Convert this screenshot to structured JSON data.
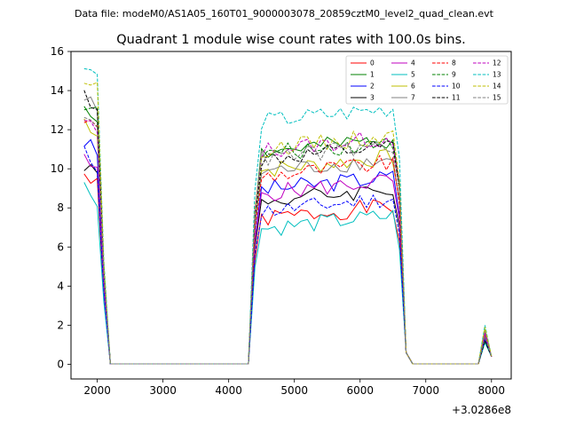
{
  "figure": {
    "suptitle": "Data file: modeM0/AS1A05_160T01_9000003078_20859cztM0_level2_quad_clean.evt"
  },
  "chart_data": {
    "type": "line",
    "title": "Quadrant 1 module wise count rates with 100.0s bins.",
    "xlabel": "",
    "ylabel": "",
    "x_offset_label": "+3.0286e8",
    "xlim": [
      1600,
      8300
    ],
    "ylim": [
      -0.75,
      16
    ],
    "xticks": [
      2000,
      3000,
      4000,
      5000,
      6000,
      7000,
      8000
    ],
    "xtick_labels": [
      "2000",
      "3000",
      "4000",
      "5000",
      "6000",
      "7000",
      "8000"
    ],
    "yticks": [
      0,
      2,
      4,
      6,
      8,
      10,
      12,
      14,
      16
    ],
    "ytick_labels": [
      "0",
      "2",
      "4",
      "6",
      "8",
      "10",
      "12",
      "14",
      "16"
    ],
    "grid": false,
    "legend_position": "top-right",
    "x_segments": [
      [
        1800,
        1900,
        2000,
        2100,
        2200
      ],
      [
        2300,
        2400,
        2500,
        2600,
        2700,
        2800,
        2900,
        3000,
        3100,
        3200,
        3300,
        3400,
        3500,
        3600,
        3700,
        3800,
        3900,
        4000,
        4100,
        4200,
        4300
      ],
      [
        4400,
        4500,
        4600,
        4700,
        4800,
        4900,
        5000,
        5100,
        5200,
        5300,
        5400,
        5500,
        5600,
        5700,
        5800,
        5900,
        6000,
        6100,
        6200,
        6300,
        6400,
        6500,
        6600,
        6700
      ],
      [
        6800,
        6900,
        7000,
        7100,
        7200,
        7300,
        7400,
        7500,
        7600,
        7700,
        7800,
        7900,
        8000
      ]
    ],
    "series": [
      {
        "name": "0",
        "color": "#ff0000",
        "dash": "solid",
        "level1": 9.7,
        "level2": 7.4,
        "peak": 1.5,
        "seed": 1
      },
      {
        "name": "1",
        "color": "#008000",
        "dash": "solid",
        "level1": 13.3,
        "level2": 10.8,
        "peak": 1.3,
        "seed": 2
      },
      {
        "name": "2",
        "color": "#0000ff",
        "dash": "solid",
        "level1": 11.4,
        "level2": 8.9,
        "peak": 1.6,
        "seed": 3
      },
      {
        "name": "3",
        "color": "#000000",
        "dash": "solid",
        "level1": 10.3,
        "level2": 8.3,
        "peak": 1.2,
        "seed": 4
      },
      {
        "name": "4",
        "color": "#bf00bf",
        "dash": "solid",
        "level1": 10.4,
        "level2": 8.7,
        "peak": 1.4,
        "seed": 5
      },
      {
        "name": "5",
        "color": "#00bfbf",
        "dash": "solid",
        "level1": 9.1,
        "level2": 6.9,
        "peak": 1.1,
        "seed": 6
      },
      {
        "name": "6",
        "color": "#bfbf00",
        "dash": "solid",
        "level1": 12.5,
        "level2": 9.9,
        "peak": 1.8,
        "seed": 7
      },
      {
        "name": "7",
        "color": "#808080",
        "dash": "solid",
        "level1": 13.6,
        "level2": 9.8,
        "peak": 1.7,
        "seed": 8
      },
      {
        "name": "8",
        "color": "#ff0000",
        "dash": "dashed",
        "level1": 12.6,
        "level2": 9.6,
        "peak": 1.5,
        "seed": 9
      },
      {
        "name": "9",
        "color": "#008000",
        "dash": "dashed",
        "level1": 13.4,
        "level2": 10.7,
        "peak": 1.4,
        "seed": 10
      },
      {
        "name": "10",
        "color": "#0000ff",
        "dash": "dashed",
        "level1": 10.8,
        "level2": 7.8,
        "peak": 1.3,
        "seed": 11
      },
      {
        "name": "11",
        "color": "#000000",
        "dash": "dashed",
        "level1": 13.8,
        "level2": 10.4,
        "peak": 1.2,
        "seed": 12
      },
      {
        "name": "12",
        "color": "#bf00bf",
        "dash": "dashed",
        "level1": 12.4,
        "level2": 10.9,
        "peak": 1.6,
        "seed": 13
      },
      {
        "name": "13",
        "color": "#00bfbf",
        "dash": "dashed",
        "level1": 15.2,
        "level2": 12.4,
        "peak": 2.0,
        "seed": 14
      },
      {
        "name": "14",
        "color": "#bfbf00",
        "dash": "dashed",
        "level1": 14.6,
        "level2": 11.0,
        "peak": 1.9,
        "seed": 15
      },
      {
        "name": "15",
        "color": "#808080",
        "dash": "dashed",
        "level1": 13.0,
        "level2": 10.5,
        "peak": 1.4,
        "seed": 16
      }
    ]
  }
}
